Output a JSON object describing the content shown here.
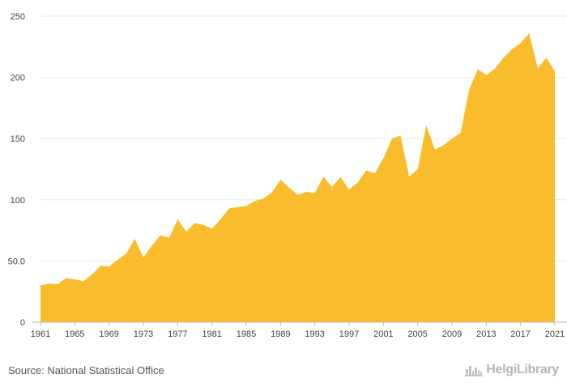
{
  "chart_data": {
    "type": "area",
    "title": "",
    "xlabel": "",
    "ylabel": "",
    "x": [
      1961,
      1962,
      1963,
      1964,
      1965,
      1966,
      1967,
      1968,
      1969,
      1970,
      1971,
      1972,
      1973,
      1974,
      1975,
      1976,
      1977,
      1978,
      1979,
      1980,
      1981,
      1982,
      1983,
      1984,
      1985,
      1986,
      1987,
      1988,
      1989,
      1990,
      1991,
      1992,
      1993,
      1994,
      1995,
      1996,
      1997,
      1998,
      1999,
      2000,
      2001,
      2002,
      2003,
      2004,
      2005,
      2006,
      2007,
      2008,
      2009,
      2010,
      2011,
      2012,
      2013,
      2014,
      2015,
      2016,
      2017,
      2018,
      2019,
      2020,
      2021
    ],
    "values": [
      30,
      31.5,
      31,
      36,
      35,
      33.5,
      39,
      46,
      45.5,
      51,
      56,
      68,
      53,
      62.5,
      71,
      69,
      84,
      74,
      81,
      79.5,
      76.5,
      84,
      93,
      94,
      95,
      99,
      101,
      106,
      116.5,
      110,
      104,
      106.5,
      105.5,
      119,
      110.5,
      118.5,
      108.5,
      114,
      124,
      121.5,
      134,
      150,
      152.5,
      119,
      125,
      161,
      141,
      144.5,
      150,
      154.5,
      190,
      206.5,
      202,
      207,
      216,
      223,
      228,
      236,
      207.5,
      216,
      205
    ],
    "xlim": [
      1961,
      2021
    ],
    "ylim": [
      0,
      250
    ],
    "x_tick_labels": [
      "1961",
      "1965",
      "1969",
      "1973",
      "1977",
      "1981",
      "1985",
      "1989",
      "1993",
      "1997",
      "2001",
      "2005",
      "2009",
      "2013",
      "2017",
      "2021"
    ],
    "y_ticks": [
      0,
      50,
      100,
      150,
      200,
      250
    ],
    "y_tick_labels": [
      "0",
      "50.0",
      "100",
      "150",
      "200",
      "250"
    ],
    "grid": true,
    "area_color": "#f9bc2d",
    "grid_color": "#e8e8e8",
    "axis_color": "#bbbbbb"
  },
  "source_text": "Source: National Statistical Office",
  "brand": {
    "name": "HelgiLibrary",
    "icon": "city-skyline-icon",
    "color": "#b5b5b5"
  }
}
